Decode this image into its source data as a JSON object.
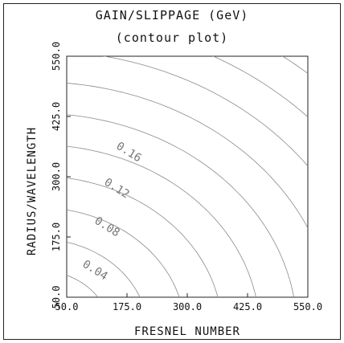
{
  "chart_data": {
    "type": "contour",
    "title": "GAIN/SLIPPAGE (GeV)",
    "subtitle": "(contour plot)",
    "xlabel": "FRESNEL NUMBER",
    "ylabel": "RADIUS/WAVELENGTH",
    "xlim": [
      50.0,
      550.0
    ],
    "ylim": [
      50.0,
      550.0
    ],
    "xticks": [
      "50.0",
      "175.0",
      "300.0",
      "425.0",
      "550.0"
    ],
    "yticks": [
      "50.0",
      "175.0",
      "300.0",
      "425.0",
      "550.0"
    ],
    "contours": [
      {
        "label": "0.04",
        "level": 0.04,
        "labeled": true,
        "label_at": [
          105,
          100
        ]
      },
      {
        "label": "0.08",
        "level": 0.08,
        "labeled": true,
        "label_at": [
          130,
          190
        ]
      },
      {
        "label": "0.12",
        "level": 0.12,
        "labeled": true,
        "label_at": [
          150,
          270
        ]
      },
      {
        "label": "0.16",
        "level": 0.16,
        "labeled": true,
        "label_at": [
          175,
          345
        ]
      },
      {
        "label": "",
        "level": 0.2,
        "labeled": false
      },
      {
        "label": "",
        "level": 0.24,
        "labeled": false
      },
      {
        "label": "",
        "level": 0.28,
        "labeled": false
      },
      {
        "label": "",
        "level": 0.32,
        "labeled": false
      },
      {
        "label": "",
        "level": 0.36,
        "labeled": false
      },
      {
        "label": "",
        "level": 0.4,
        "labeled": false
      }
    ],
    "grid": false
  }
}
